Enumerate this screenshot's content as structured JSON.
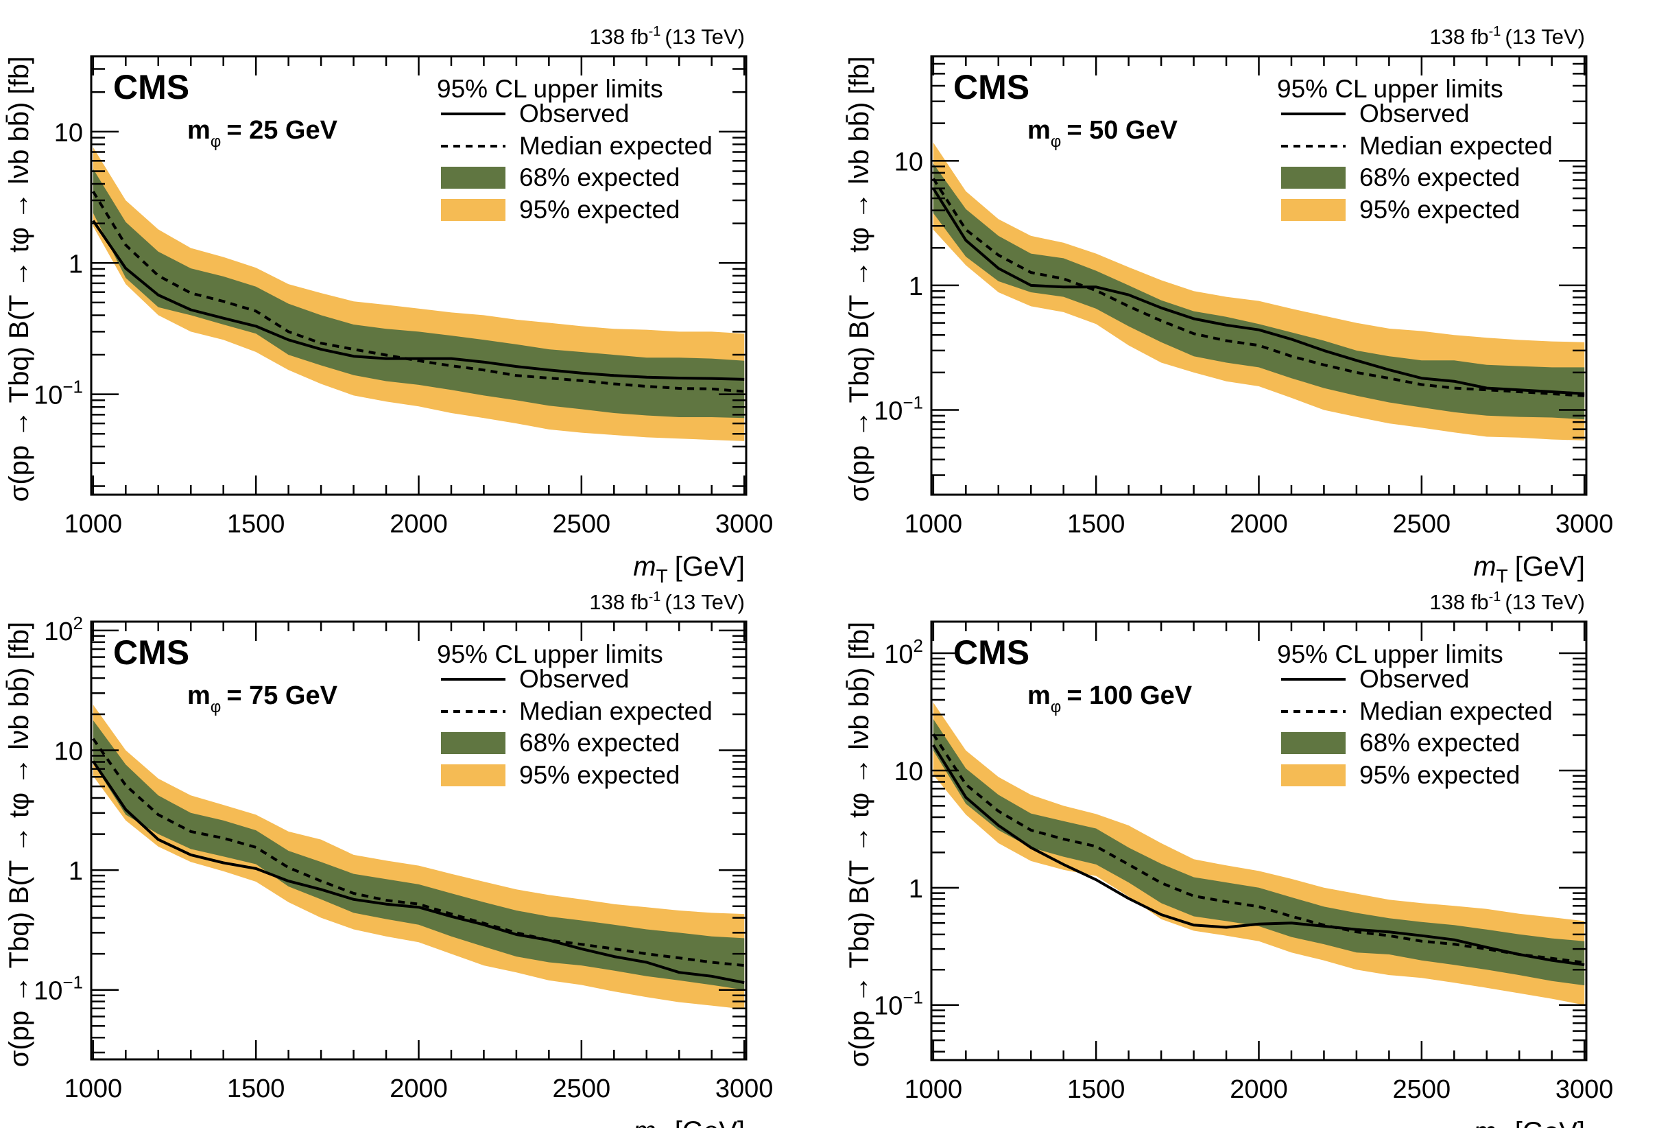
{
  "figure": {
    "lumi_label": "138 fb",
    "lumi_exponent": "-1",
    "energy_label": "(13 TeV)",
    "experiment_label": "CMS",
    "legend": {
      "title": "95% CL upper limits",
      "observed": "Observed",
      "median": "Median expected",
      "band68": "68% expected",
      "band95": "95% expected"
    },
    "colors": {
      "band68": "#607641",
      "band95": "#F5BB54",
      "line": "#000000"
    },
    "ylabel": "σ(pp → Tbq) B(T → tφ → lνb bb̄) [fb]",
    "xlabel_main": "m",
    "xlabel_sub": "T",
    "xlabel_unit": "[GeV]"
  },
  "chart_data": [
    {
      "type": "line",
      "title": "m_φ = 25 GeV",
      "mass_label": "m",
      "mass_sub": "φ",
      "mass_value": "= 25 GeV",
      "xlabel": "m_T [GeV]",
      "ylabel": "σ(pp → Tbq) B(T → tφ → lνb bb̄) [fb]",
      "yscale": "log",
      "xlim": [
        994,
        3006
      ],
      "ylim": [
        0.0172,
        37.5
      ],
      "xticks": [
        1000,
        1500,
        2000,
        2500,
        3000
      ],
      "yticks": [
        {
          "v": 10,
          "label": "10"
        },
        {
          "v": 1,
          "label": "1"
        },
        {
          "v": 0.1,
          "label": "10",
          "sup": "−1"
        }
      ],
      "legend_position": "top-right",
      "x": [
        1000,
        1100,
        1200,
        1300,
        1400,
        1500,
        1600,
        1700,
        1800,
        1900,
        2000,
        2100,
        2200,
        2300,
        2400,
        2500,
        2600,
        2700,
        2800,
        2900,
        3000
      ],
      "series": [
        {
          "name": "Observed",
          "values": [
            2.1,
            0.91,
            0.57,
            0.44,
            0.38,
            0.33,
            0.26,
            0.22,
            0.195,
            0.187,
            0.187,
            0.187,
            0.176,
            0.163,
            0.153,
            0.145,
            0.139,
            0.135,
            0.133,
            0.132,
            0.13
          ]
        },
        {
          "name": "Median expected",
          "values": [
            3.5,
            1.37,
            0.8,
            0.59,
            0.51,
            0.43,
            0.3,
            0.245,
            0.22,
            0.199,
            0.18,
            0.165,
            0.153,
            0.139,
            0.133,
            0.127,
            0.12,
            0.115,
            0.111,
            0.11,
            0.105
          ]
        },
        {
          "name": "68% expected",
          "low": [
            2.4,
            0.77,
            0.46,
            0.4,
            0.34,
            0.29,
            0.2,
            0.166,
            0.14,
            0.126,
            0.118,
            0.108,
            0.098,
            0.09,
            0.082,
            0.077,
            0.072,
            0.069,
            0.067,
            0.067,
            0.066
          ],
          "high": [
            5.2,
            2.05,
            1.22,
            0.91,
            0.79,
            0.66,
            0.49,
            0.4,
            0.34,
            0.315,
            0.3,
            0.28,
            0.26,
            0.24,
            0.22,
            0.21,
            0.2,
            0.19,
            0.19,
            0.187,
            0.18
          ]
        },
        {
          "name": "95% expected",
          "low": [
            1.9,
            0.69,
            0.4,
            0.3,
            0.26,
            0.21,
            0.153,
            0.12,
            0.098,
            0.088,
            0.081,
            0.072,
            0.066,
            0.06,
            0.054,
            0.051,
            0.049,
            0.047,
            0.046,
            0.045,
            0.044
          ],
          "high": [
            7.6,
            3.0,
            1.8,
            1.3,
            1.11,
            0.92,
            0.69,
            0.59,
            0.51,
            0.48,
            0.45,
            0.42,
            0.4,
            0.37,
            0.35,
            0.33,
            0.315,
            0.31,
            0.3,
            0.3,
            0.29
          ]
        }
      ]
    },
    {
      "type": "line",
      "title": "m_φ = 50 GeV",
      "mass_label": "m",
      "mass_sub": "φ",
      "mass_value": "= 50 GeV",
      "xlabel": "m_T [GeV]",
      "ylabel": "σ(pp → Tbq) B(T → tφ → lνb bb̄) [fb]",
      "yscale": "log",
      "xlim": [
        994,
        3006
      ],
      "ylim": [
        0.0209,
        69
      ],
      "xticks": [
        1000,
        1500,
        2000,
        2500,
        3000
      ],
      "yticks": [
        {
          "v": 10,
          "label": "10"
        },
        {
          "v": 1,
          "label": "1"
        },
        {
          "v": 0.1,
          "label": "10",
          "sup": "−1"
        }
      ],
      "legend_position": "top-right",
      "x": [
        1000,
        1100,
        1200,
        1300,
        1400,
        1500,
        1600,
        1700,
        1800,
        1900,
        2000,
        2100,
        2200,
        2300,
        2400,
        2500,
        2600,
        2700,
        2800,
        2900,
        3000
      ],
      "series": [
        {
          "name": "Observed",
          "values": [
            6.0,
            2.3,
            1.37,
            1.0,
            0.97,
            0.97,
            0.84,
            0.66,
            0.54,
            0.48,
            0.44,
            0.37,
            0.3,
            0.25,
            0.21,
            0.18,
            0.17,
            0.15,
            0.145,
            0.14,
            0.135
          ]
        },
        {
          "name": "Median expected",
          "values": [
            7.2,
            2.8,
            1.75,
            1.27,
            1.13,
            0.91,
            0.68,
            0.52,
            0.41,
            0.36,
            0.33,
            0.27,
            0.23,
            0.2,
            0.18,
            0.16,
            0.15,
            0.145,
            0.14,
            0.135,
            0.13
          ]
        },
        {
          "name": "68% expected",
          "low": [
            3.8,
            1.7,
            1.08,
            0.88,
            0.81,
            0.65,
            0.47,
            0.35,
            0.27,
            0.24,
            0.22,
            0.18,
            0.15,
            0.13,
            0.115,
            0.105,
            0.096,
            0.09,
            0.088,
            0.087,
            0.084
          ],
          "high": [
            9.5,
            4.1,
            2.5,
            1.8,
            1.65,
            1.31,
            1.0,
            0.76,
            0.62,
            0.56,
            0.49,
            0.42,
            0.36,
            0.3,
            0.27,
            0.25,
            0.25,
            0.23,
            0.225,
            0.22,
            0.22
          ]
        },
        {
          "name": "95% expected",
          "low": [
            2.8,
            1.45,
            0.88,
            0.68,
            0.61,
            0.49,
            0.33,
            0.24,
            0.2,
            0.17,
            0.155,
            0.125,
            0.1,
            0.088,
            0.078,
            0.072,
            0.066,
            0.061,
            0.06,
            0.058,
            0.057
          ],
          "high": [
            14,
            5.7,
            3.4,
            2.5,
            2.2,
            1.8,
            1.4,
            1.1,
            0.9,
            0.81,
            0.75,
            0.65,
            0.57,
            0.5,
            0.45,
            0.43,
            0.4,
            0.38,
            0.365,
            0.355,
            0.35
          ]
        }
      ]
    },
    {
      "type": "line",
      "title": "m_φ = 75 GeV",
      "mass_label": "m",
      "mass_sub": "φ",
      "mass_value": "= 75 GeV",
      "xlabel": "m_T [GeV]",
      "ylabel": "σ(pp → Tbq) B(T → tφ → lνb bb̄) [fb]",
      "yscale": "log",
      "xlim": [
        994,
        3006
      ],
      "ylim": [
        0.0263,
        118.6
      ],
      "xticks": [
        1000,
        1500,
        2000,
        2500,
        3000
      ],
      "yticks": [
        {
          "v": 100,
          "label": "10",
          "sup": "2"
        },
        {
          "v": 10,
          "label": "10"
        },
        {
          "v": 1,
          "label": "1"
        },
        {
          "v": 0.1,
          "label": "10",
          "sup": "−1"
        }
      ],
      "legend_position": "top-right",
      "x": [
        1000,
        1100,
        1200,
        1300,
        1400,
        1500,
        1600,
        1700,
        1800,
        1900,
        2000,
        2100,
        2200,
        2300,
        2400,
        2500,
        2600,
        2700,
        2800,
        2900,
        3000
      ],
      "series": [
        {
          "name": "Observed",
          "values": [
            8.1,
            3.2,
            1.8,
            1.34,
            1.15,
            1.03,
            0.81,
            0.69,
            0.57,
            0.52,
            0.49,
            0.41,
            0.35,
            0.29,
            0.26,
            0.22,
            0.19,
            0.17,
            0.14,
            0.13,
            0.115
          ]
        },
        {
          "name": "Median expected",
          "values": [
            12.5,
            5.1,
            2.9,
            2.1,
            1.85,
            1.55,
            1.05,
            0.81,
            0.64,
            0.56,
            0.52,
            0.43,
            0.36,
            0.3,
            0.26,
            0.24,
            0.22,
            0.2,
            0.185,
            0.17,
            0.16
          ]
        },
        {
          "name": "68% expected",
          "low": [
            7.8,
            2.9,
            2.0,
            1.5,
            1.3,
            1.12,
            0.73,
            0.57,
            0.44,
            0.39,
            0.35,
            0.28,
            0.23,
            0.19,
            0.17,
            0.16,
            0.145,
            0.13,
            0.12,
            0.11,
            0.1
          ],
          "high": [
            17.8,
            7.6,
            4.2,
            3.0,
            2.6,
            2.15,
            1.45,
            1.17,
            0.93,
            0.84,
            0.76,
            0.64,
            0.54,
            0.46,
            0.41,
            0.38,
            0.35,
            0.32,
            0.3,
            0.28,
            0.27
          ]
        },
        {
          "name": "95% expected",
          "low": [
            6.1,
            2.6,
            1.57,
            1.17,
            0.98,
            0.8,
            0.54,
            0.4,
            0.32,
            0.28,
            0.25,
            0.2,
            0.16,
            0.14,
            0.12,
            0.11,
            0.097,
            0.087,
            0.079,
            0.074,
            0.069
          ],
          "high": [
            24,
            10,
            5.8,
            4.2,
            3.5,
            2.9,
            2.1,
            1.8,
            1.34,
            1.2,
            1.09,
            0.93,
            0.8,
            0.69,
            0.62,
            0.57,
            0.52,
            0.49,
            0.46,
            0.44,
            0.43
          ]
        }
      ]
    },
    {
      "type": "line",
      "title": "m_φ = 100 GeV",
      "mass_label": "m",
      "mass_sub": "φ",
      "mass_value": "= 100 GeV",
      "xlabel": "m_T [GeV]",
      "ylabel": "σ(pp → Tbq) B(T → tφ → lνb bb̄) [fb]",
      "yscale": "log",
      "xlim": [
        994,
        3006
      ],
      "ylim": [
        0.0339,
        186
      ],
      "xticks": [
        1000,
        1500,
        2000,
        2500,
        3000
      ],
      "yticks": [
        {
          "v": 100,
          "label": "10",
          "sup": "2"
        },
        {
          "v": 10,
          "label": "10"
        },
        {
          "v": 1,
          "label": "1"
        },
        {
          "v": 0.1,
          "label": "10",
          "sup": "−1"
        }
      ],
      "legend_position": "top-right",
      "x": [
        1000,
        1100,
        1200,
        1300,
        1400,
        1500,
        1600,
        1700,
        1800,
        1900,
        2000,
        2100,
        2200,
        2300,
        2400,
        2500,
        2600,
        2700,
        2800,
        2900,
        3000
      ],
      "series": [
        {
          "name": "Observed",
          "values": [
            16.5,
            5.9,
            3.4,
            2.2,
            1.58,
            1.17,
            0.81,
            0.59,
            0.48,
            0.46,
            0.49,
            0.5,
            0.47,
            0.44,
            0.42,
            0.39,
            0.36,
            0.31,
            0.27,
            0.24,
            0.22
          ]
        },
        {
          "name": "Median expected",
          "values": [
            20.4,
            7.6,
            4.5,
            3.1,
            2.6,
            2.25,
            1.58,
            1.1,
            0.85,
            0.76,
            0.69,
            0.57,
            0.48,
            0.42,
            0.39,
            0.35,
            0.33,
            0.3,
            0.27,
            0.25,
            0.23
          ]
        },
        {
          "name": "68% expected",
          "low": [
            14.8,
            5.2,
            3.1,
            2.2,
            1.84,
            1.58,
            1.11,
            0.74,
            0.57,
            0.52,
            0.47,
            0.38,
            0.33,
            0.28,
            0.27,
            0.24,
            0.22,
            0.2,
            0.18,
            0.16,
            0.147
          ],
          "high": [
            27.5,
            10.4,
            6.2,
            4.3,
            3.7,
            3.2,
            2.2,
            1.6,
            1.23,
            1.11,
            1.0,
            0.83,
            0.69,
            0.61,
            0.55,
            0.51,
            0.48,
            0.44,
            0.4,
            0.37,
            0.35
          ]
        },
        {
          "name": "95% expected",
          "low": [
            9.2,
            4.2,
            2.4,
            1.69,
            1.42,
            1.26,
            0.84,
            0.54,
            0.43,
            0.39,
            0.35,
            0.28,
            0.24,
            0.2,
            0.18,
            0.17,
            0.155,
            0.14,
            0.126,
            0.113,
            0.1
          ],
          "high": [
            38,
            14.8,
            8.8,
            6.2,
            5.0,
            4.25,
            3.4,
            2.4,
            1.75,
            1.55,
            1.39,
            1.19,
            1.0,
            0.89,
            0.79,
            0.74,
            0.7,
            0.66,
            0.6,
            0.56,
            0.52
          ]
        }
      ]
    }
  ]
}
